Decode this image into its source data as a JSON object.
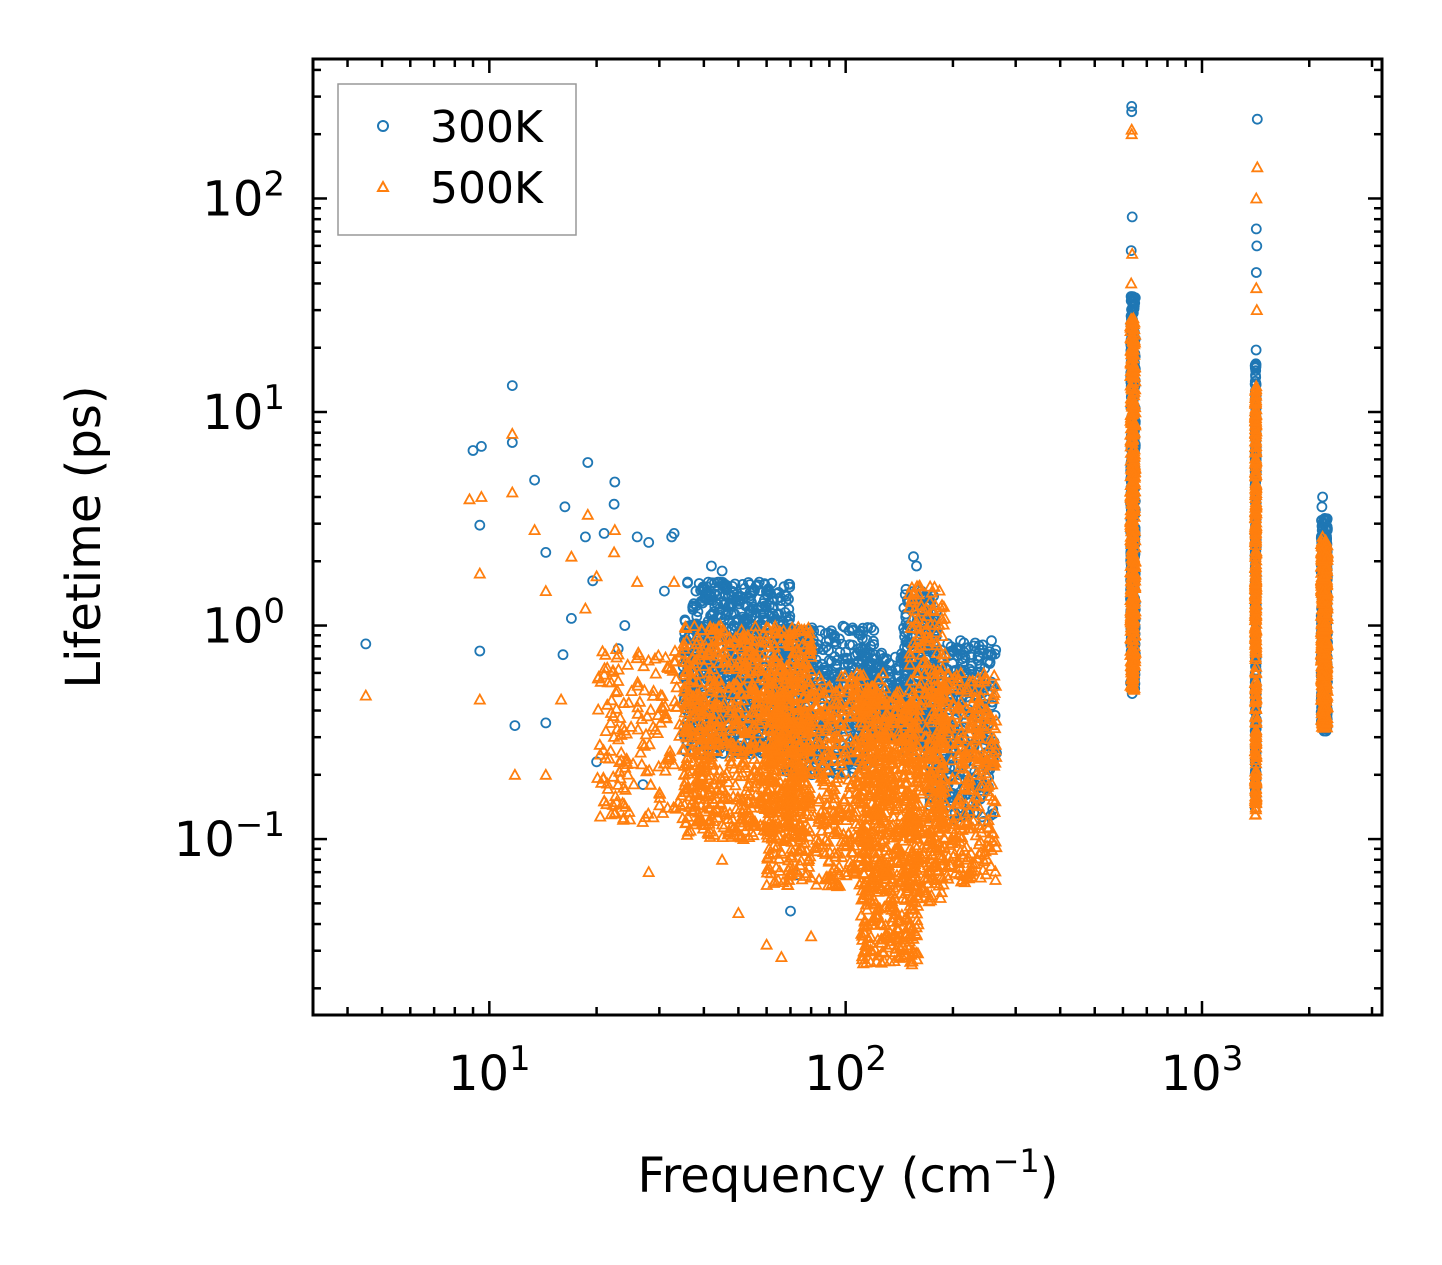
{
  "chart_data": {
    "type": "scatter",
    "title": "",
    "xlabel": "Frequency (cm",
    "xlabel_sup": "−1",
    "xlabel_end": ")",
    "ylabel": "Lifetime (ps)",
    "xscale": "log",
    "yscale": "log",
    "xlim": [
      3.2,
      3200
    ],
    "ylim": [
      0.015,
      450
    ],
    "x_ticks": [
      {
        "value": 10,
        "base": "10",
        "exp": "1"
      },
      {
        "value": 100,
        "base": "10",
        "exp": "2"
      },
      {
        "value": 1000,
        "base": "10",
        "exp": "3"
      }
    ],
    "y_ticks": [
      {
        "value": 0.1,
        "base": "10",
        "exp": "−1"
      },
      {
        "value": 1,
        "base": "10",
        "exp": "0"
      },
      {
        "value": 10,
        "base": "10",
        "exp": "1"
      },
      {
        "value": 100,
        "base": "10",
        "exp": "2"
      }
    ],
    "legend": {
      "location": "top-left"
    },
    "series": [
      {
        "name": "300K",
        "marker": "circle",
        "color": "#1f77b4",
        "points": [
          [
            4.5,
            0.82
          ],
          [
            9.0,
            6.6
          ],
          [
            9.5,
            6.9
          ],
          [
            9.4,
            2.95
          ],
          [
            9.4,
            0.76
          ],
          [
            11.6,
            13.3
          ],
          [
            11.6,
            7.2
          ],
          [
            11.8,
            0.34
          ],
          [
            13.4,
            4.8
          ],
          [
            14.4,
            2.2
          ],
          [
            14.4,
            0.35
          ],
          [
            16.3,
            3.6
          ],
          [
            16.1,
            0.73
          ],
          [
            17.0,
            1.08
          ],
          [
            18.6,
            2.6
          ],
          [
            18.9,
            5.8
          ],
          [
            19.5,
            1.62
          ],
          [
            20.0,
            0.23
          ],
          [
            21.0,
            2.7
          ],
          [
            22.5,
            4.7
          ],
          [
            22.4,
            3.7
          ],
          [
            23.0,
            0.78
          ],
          [
            24.0,
            1.0
          ],
          [
            26.0,
            2.6
          ],
          [
            27.0,
            0.18
          ],
          [
            28.0,
            2.45
          ],
          [
            31.0,
            1.45
          ],
          [
            32.5,
            2.6
          ],
          [
            33.0,
            2.7
          ],
          [
            36.0,
            1.6
          ],
          [
            38.0,
            1.45
          ],
          [
            42.0,
            1.9
          ],
          [
            45.0,
            1.8
          ],
          [
            48.0,
            1.45
          ],
          [
            55.0,
            1.45
          ],
          [
            60.0,
            1.4
          ],
          [
            68.0,
            1.3
          ],
          [
            70.0,
            0.046
          ],
          [
            73.0,
            0.068
          ],
          [
            80.0,
            0.95
          ],
          [
            100.0,
            0.75
          ],
          [
            130.0,
            0.7
          ],
          [
            155.0,
            2.1
          ],
          [
            158.0,
            1.9
          ],
          [
            170.0,
            1.3
          ],
          [
            210.0,
            0.85
          ],
          [
            215.0,
            0.75
          ]
        ],
        "clusters": [
          {
            "x": [
              35,
              70
            ],
            "y": [
              0.25,
              1.6
            ],
            "n": 800
          },
          {
            "x": [
              65,
              120
            ],
            "y": [
              0.2,
              1.0
            ],
            "n": 500
          },
          {
            "x": [
              110,
              150
            ],
            "y": [
              0.3,
              0.75
            ],
            "n": 200
          },
          {
            "x": [
              145,
              180
            ],
            "y": [
              0.25,
              1.5
            ],
            "n": 250
          },
          {
            "x": [
              170,
              265
            ],
            "y": [
              0.12,
              0.85
            ],
            "n": 350
          },
          {
            "x": [
              630,
              650
            ],
            "y": [
              0.5,
              35
            ],
            "n": 400
          },
          {
            "x": [
              1410,
              1420
            ],
            "y": [
              0.15,
              20
            ],
            "n": 300
          },
          {
            "x": [
              2160,
              2250
            ],
            "y": [
              0.32,
              3.2
            ],
            "n": 400
          }
        ],
        "outliers": [
          [
            635,
            270
          ],
          [
            635,
            255
          ],
          [
            637,
            82
          ],
          [
            633,
            57
          ],
          [
            1430,
            235
          ],
          [
            1420,
            72
          ],
          [
            1425,
            60
          ],
          [
            1420,
            45
          ],
          [
            2180,
            4.0
          ],
          [
            2170,
            3.6
          ],
          [
            637,
            0.48
          ],
          [
            1410,
            0.14
          ]
        ]
      },
      {
        "name": "500K",
        "marker": "triangle",
        "color": "#ff7f0e",
        "points": [
          [
            4.5,
            0.47
          ],
          [
            8.8,
            3.9
          ],
          [
            9.5,
            4.0
          ],
          [
            9.4,
            1.75
          ],
          [
            9.4,
            0.45
          ],
          [
            11.6,
            7.9
          ],
          [
            11.6,
            4.2
          ],
          [
            11.8,
            0.2
          ],
          [
            13.4,
            2.8
          ],
          [
            14.4,
            1.45
          ],
          [
            14.4,
            0.2
          ],
          [
            15.9,
            0.45
          ],
          [
            17.0,
            2.1
          ],
          [
            18.6,
            1.2
          ],
          [
            18.9,
            3.3
          ],
          [
            20.0,
            1.7
          ],
          [
            21.0,
            0.15
          ],
          [
            22.5,
            2.8
          ],
          [
            22.4,
            2.2
          ],
          [
            23.0,
            0.55
          ],
          [
            26.0,
            1.6
          ],
          [
            28.0,
            0.07
          ],
          [
            33.0,
            1.6
          ],
          [
            45.0,
            0.08
          ],
          [
            50.0,
            0.045
          ],
          [
            60.0,
            0.032
          ],
          [
            66.0,
            0.028
          ],
          [
            80.0,
            0.035
          ]
        ],
        "clusters": [
          {
            "x": [
              20,
              40
            ],
            "y": [
              0.12,
              0.8
            ],
            "n": 200
          },
          {
            "x": [
              35,
              80
            ],
            "y": [
              0.1,
              1.0
            ],
            "n": 900
          },
          {
            "x": [
              60,
              130
            ],
            "y": [
              0.06,
              0.6
            ],
            "n": 700
          },
          {
            "x": [
              110,
              160
            ],
            "y": [
              0.025,
              0.5
            ],
            "n": 600
          },
          {
            "x": [
              150,
              190
            ],
            "y": [
              0.05,
              1.6
            ],
            "n": 300
          },
          {
            "x": [
              170,
              265
            ],
            "y": [
              0.06,
              0.6
            ],
            "n": 400
          },
          {
            "x": [
              630,
              650
            ],
            "y": [
              0.5,
              28
            ],
            "n": 400
          },
          {
            "x": [
              1410,
              1420
            ],
            "y": [
              0.13,
              14
            ],
            "n": 300
          },
          {
            "x": [
              2160,
              2250
            ],
            "y": [
              0.33,
              2.5
            ],
            "n": 400
          }
        ],
        "outliers": [
          [
            635,
            200
          ],
          [
            635,
            210
          ],
          [
            637,
            55
          ],
          [
            633,
            40
          ],
          [
            1430,
            140
          ],
          [
            1420,
            100
          ],
          [
            1420,
            38
          ],
          [
            1425,
            30
          ],
          [
            2180,
            2.6
          ],
          [
            637,
            0.56
          ],
          [
            1410,
            0.13
          ]
        ]
      }
    ]
  }
}
